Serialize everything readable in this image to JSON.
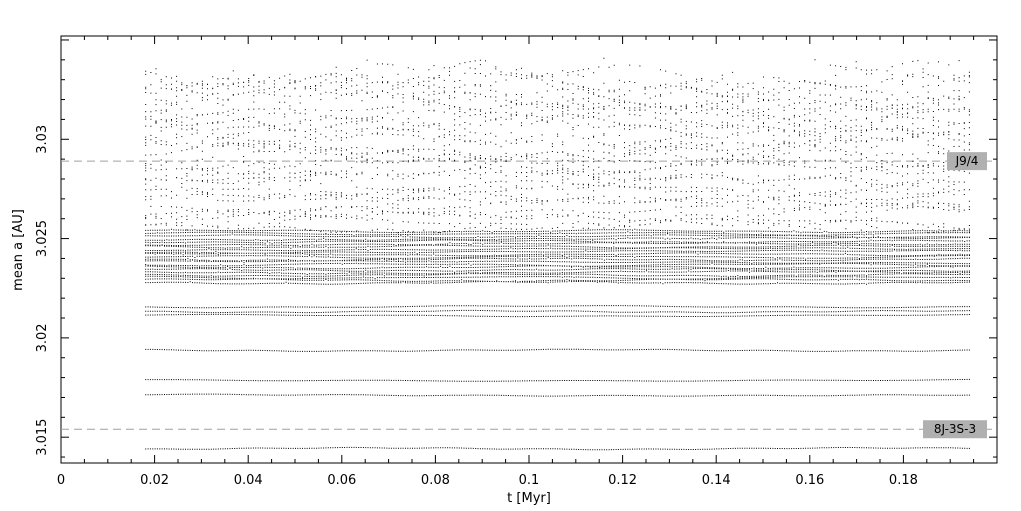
{
  "chart_data": {
    "type": "scatter",
    "xlabel": "t [Myr]",
    "ylabel": "mean a [AU]",
    "xlim": [
      0,
      0.2
    ],
    "ylim": [
      3.0137,
      3.0352
    ],
    "x_ticks": [
      0,
      0.02,
      0.04,
      0.06,
      0.08,
      0.1,
      0.12,
      0.14,
      0.16,
      0.18
    ],
    "x_tick_labels": [
      "0",
      "0.02",
      "0.04",
      "0.06",
      "0.08",
      "0.1",
      "0.12",
      "0.14",
      "0.16",
      "0.18"
    ],
    "y_ticks": [
      3.015,
      3.02,
      3.025,
      3.03
    ],
    "y_tick_labels": [
      "3.015",
      "3.02",
      "3.025",
      "3.03"
    ],
    "grid": false,
    "x_range_of_points": [
      0.018,
      0.1945
    ],
    "reference_lines": [
      {
        "label": "J9/4",
        "y": 3.0289,
        "style": "dashed"
      },
      {
        "label": "8J-3S-3",
        "y": 3.0154,
        "style": "dashed"
      }
    ],
    "tracks": {
      "stable_levels": [
        3.01445,
        3.01715,
        3.0179,
        3.0194,
        3.02115,
        3.02135,
        3.0216
      ],
      "dense_band_range": [
        3.0228,
        3.0255
      ],
      "chaotic_band_range": [
        3.0256,
        3.0335
      ]
    },
    "point_color": "#000000",
    "reference_line_color": "#a0a0a0",
    "label_box_color": "#b0b0b0"
  }
}
